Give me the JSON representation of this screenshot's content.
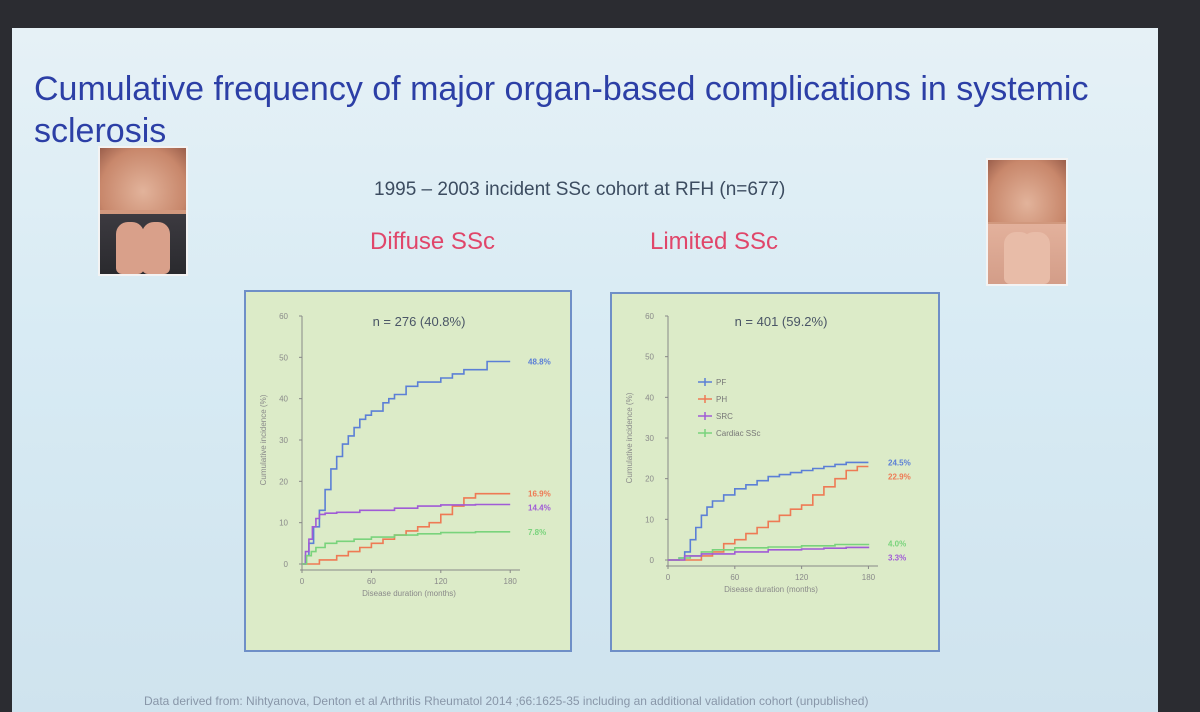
{
  "slide": {
    "title": "Cumulative frequency of major organ-based complications in systemic sclerosis",
    "subtitle": "1995 – 2003 incident SSc cohort at RFH (n=677)",
    "group_left": "Diffuse SSc",
    "group_right": "Limited SSc",
    "footer": "Data derived from: Nihtyanova, Denton et al Arthritis Rheumatol 2014 ;66:1625-35 including an additional validation cohort (unpublished)"
  },
  "colors": {
    "PF": "#5b7fd6",
    "PH": "#ee7a54",
    "SRC": "#a05bd6",
    "Cardiac": "#79d37c"
  },
  "chart_data": [
    {
      "type": "line",
      "title": "n = 276 (40.8%)",
      "xlabel": "Disease duration (months)",
      "ylabel": "Cumulative incidence (%)",
      "xlim": [
        0,
        185
      ],
      "ylim": [
        0,
        60
      ],
      "xticks": [
        0,
        60,
        120,
        180
      ],
      "yticks": [
        0,
        10,
        20,
        30,
        40,
        50,
        60
      ],
      "legend": null,
      "series": [
        {
          "key": "PF",
          "end_label": "48.8%",
          "points": [
            [
              0,
              0
            ],
            [
              3,
              2
            ],
            [
              6,
              5
            ],
            [
              10,
              9
            ],
            [
              15,
              13
            ],
            [
              20,
              18
            ],
            [
              25,
              23
            ],
            [
              30,
              26
            ],
            [
              35,
              29
            ],
            [
              40,
              31
            ],
            [
              45,
              33
            ],
            [
              50,
              35
            ],
            [
              55,
              36
            ],
            [
              60,
              37
            ],
            [
              70,
              39
            ],
            [
              75,
              40
            ],
            [
              80,
              41
            ],
            [
              90,
              43
            ],
            [
              100,
              44
            ],
            [
              110,
              44
            ],
            [
              120,
              45
            ],
            [
              130,
              46
            ],
            [
              140,
              47
            ],
            [
              150,
              47
            ],
            [
              160,
              49
            ],
            [
              170,
              49
            ],
            [
              180,
              49
            ]
          ]
        },
        {
          "key": "PH",
          "end_label": "16.9%",
          "points": [
            [
              0,
              0
            ],
            [
              10,
              0
            ],
            [
              15,
              1
            ],
            [
              20,
              1
            ],
            [
              30,
              2
            ],
            [
              40,
              3
            ],
            [
              50,
              4
            ],
            [
              60,
              5
            ],
            [
              70,
              6
            ],
            [
              80,
              7
            ],
            [
              90,
              8
            ],
            [
              100,
              9
            ],
            [
              110,
              10
            ],
            [
              120,
              12
            ],
            [
              130,
              14
            ],
            [
              140,
              16
            ],
            [
              150,
              17
            ],
            [
              160,
              17
            ],
            [
              180,
              17
            ]
          ]
        },
        {
          "key": "SRC",
          "end_label": "14.4%",
          "points": [
            [
              0,
              0
            ],
            [
              3,
              3
            ],
            [
              6,
              6
            ],
            [
              9,
              9
            ],
            [
              12,
              11
            ],
            [
              15,
              12
            ],
            [
              20,
              12.3
            ],
            [
              30,
              12.5
            ],
            [
              50,
              13
            ],
            [
              80,
              13.5
            ],
            [
              100,
              14
            ],
            [
              120,
              14.3
            ],
            [
              150,
              14.4
            ],
            [
              180,
              14.4
            ]
          ]
        },
        {
          "key": "Cardiac",
          "end_label": "7.8%",
          "points": [
            [
              0,
              0
            ],
            [
              4,
              2
            ],
            [
              8,
              3
            ],
            [
              12,
              4
            ],
            [
              20,
              5
            ],
            [
              30,
              5.5
            ],
            [
              45,
              6
            ],
            [
              60,
              6.5
            ],
            [
              80,
              7
            ],
            [
              100,
              7.3
            ],
            [
              120,
              7.6
            ],
            [
              150,
              7.8
            ],
            [
              180,
              7.8
            ]
          ]
        }
      ]
    },
    {
      "type": "line",
      "title": "n = 401 (59.2%)",
      "xlabel": "Disease duration (months)",
      "ylabel": "Cumulative incidence (%)",
      "xlim": [
        0,
        185
      ],
      "ylim": [
        0,
        60
      ],
      "xticks": [
        0,
        60,
        120,
        180
      ],
      "yticks": [
        0,
        10,
        20,
        30,
        40,
        50,
        60
      ],
      "legend": [
        "PF",
        "PH",
        "SRC",
        "Cardiac SSc"
      ],
      "series": [
        {
          "key": "PF",
          "end_label": "24.5%",
          "points": [
            [
              0,
              0
            ],
            [
              10,
              0.5
            ],
            [
              15,
              2
            ],
            [
              20,
              5
            ],
            [
              25,
              8
            ],
            [
              30,
              11
            ],
            [
              35,
              13
            ],
            [
              40,
              14.5
            ],
            [
              50,
              16
            ],
            [
              60,
              17.5
            ],
            [
              70,
              18.5
            ],
            [
              80,
              19.5
            ],
            [
              90,
              20.5
            ],
            [
              100,
              21
            ],
            [
              110,
              21.5
            ],
            [
              120,
              22
            ],
            [
              130,
              22.5
            ],
            [
              140,
              23
            ],
            [
              150,
              23.5
            ],
            [
              160,
              24
            ],
            [
              170,
              24
            ],
            [
              180,
              24
            ]
          ]
        },
        {
          "key": "PH",
          "end_label": "22.9%",
          "points": [
            [
              0,
              0
            ],
            [
              20,
              0
            ],
            [
              30,
              1
            ],
            [
              40,
              2
            ],
            [
              50,
              4
            ],
            [
              60,
              5
            ],
            [
              70,
              6.5
            ],
            [
              80,
              8
            ],
            [
              90,
              9.5
            ],
            [
              100,
              11
            ],
            [
              110,
              12.5
            ],
            [
              120,
              13.5
            ],
            [
              130,
              16
            ],
            [
              140,
              18
            ],
            [
              150,
              20
            ],
            [
              160,
              22
            ],
            [
              170,
              23
            ],
            [
              180,
              23
            ]
          ]
        },
        {
          "key": "Cardiac",
          "end_label": "4.0%",
          "points": [
            [
              0,
              0
            ],
            [
              10,
              0.5
            ],
            [
              20,
              1
            ],
            [
              30,
              2
            ],
            [
              40,
              2.5
            ],
            [
              60,
              3
            ],
            [
              90,
              3.2
            ],
            [
              120,
              3.5
            ],
            [
              150,
              3.8
            ],
            [
              180,
              4
            ]
          ]
        },
        {
          "key": "SRC",
          "end_label": "3.3%",
          "points": [
            [
              0,
              0
            ],
            [
              15,
              1
            ],
            [
              30,
              1.5
            ],
            [
              60,
              2
            ],
            [
              90,
              2.5
            ],
            [
              120,
              2.7
            ],
            [
              140,
              2.9
            ],
            [
              160,
              3.1
            ],
            [
              180,
              3.3
            ]
          ]
        }
      ]
    }
  ]
}
